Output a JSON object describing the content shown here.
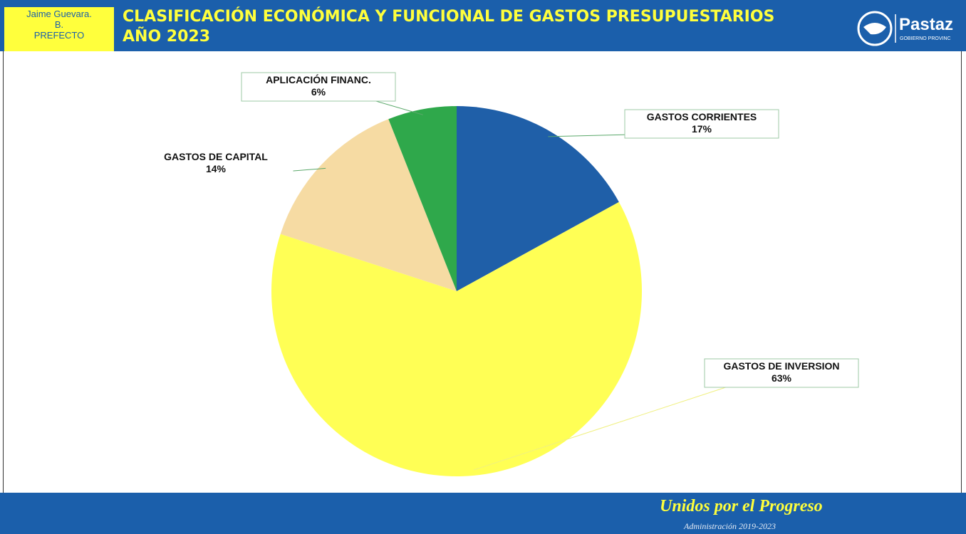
{
  "header": {
    "prefect": [
      "Jaime Guevara.",
      "B.",
      "PREFECTO"
    ],
    "title": "CLASIFICACIÓN ECONÓMICA Y FUNCIONAL DE GASTOS PRESUPUESTARIOS AÑO 2023",
    "logo": "Pastaz",
    "logo_sub": "GOBIERNO PROVINC"
  },
  "chart_data": {
    "type": "pie",
    "categories": [
      "GASTOS CORRIENTES",
      "GASTOS DE INVERSION",
      "GASTOS DE CAPITAL",
      "APLICACIÓN FINANC."
    ],
    "values": [
      17,
      63,
      14,
      6
    ],
    "value_labels": [
      "17%",
      "63%",
      "14%",
      "6%"
    ],
    "colors": [
      "#1f5fa8",
      "#ffff55",
      "#f6dba3",
      "#2fa84b"
    ]
  },
  "footer": {
    "slogan": "Unidos por el Progreso",
    "admin": "Administración 2019-2023"
  }
}
